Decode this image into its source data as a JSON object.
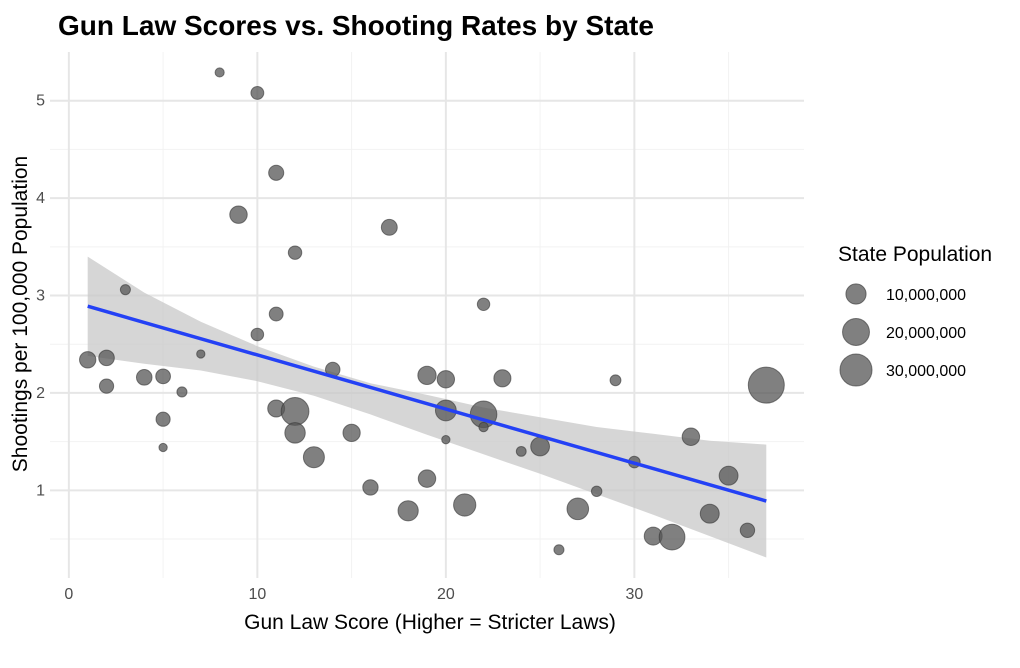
{
  "chart_data": {
    "type": "scatter",
    "title": "Gun Law Scores vs. Shooting Rates by State",
    "xlabel": "Gun Law Score (Higher = Stricter Laws)",
    "ylabel": "Shootings per 100,000 Population",
    "xlim": [
      -1,
      39
    ],
    "ylim": [
      0.1,
      5.5
    ],
    "xticks": [
      0,
      10,
      20,
      30
    ],
    "yticks": [
      1,
      2,
      3,
      4,
      5
    ],
    "grid": true,
    "legend": {
      "title": "State Population",
      "placement": "right",
      "entries": [
        {
          "label": "10,000,000",
          "value": 10000000
        },
        {
          "label": "20,000,000",
          "value": 20000000
        },
        {
          "label": "30,000,000",
          "value": 30000000
        }
      ]
    },
    "point_color": "#555555",
    "trend_color": "#2441f5",
    "ribbon_color": "#c8c8c8",
    "trend_line": {
      "x": [
        1,
        37
      ],
      "y": [
        2.89,
        0.89
      ]
    },
    "confidence_band": {
      "x": [
        1,
        4,
        7,
        10,
        13,
        16,
        19,
        22,
        25,
        28,
        31,
        34,
        37
      ],
      "upper": [
        3.4,
        3.03,
        2.73,
        2.48,
        2.27,
        2.1,
        1.98,
        1.85,
        1.75,
        1.65,
        1.58,
        1.51,
        1.47
      ],
      "lower": [
        2.38,
        2.3,
        2.23,
        2.12,
        1.97,
        1.78,
        1.57,
        1.37,
        1.17,
        0.96,
        0.75,
        0.53,
        0.31
      ]
    },
    "points": [
      {
        "x": 8,
        "y": 5.29,
        "size": 1000000
      },
      {
        "x": 10,
        "y": 5.08,
        "size": 3000000
      },
      {
        "x": 11,
        "y": 4.26,
        "size": 4700000
      },
      {
        "x": 9,
        "y": 3.83,
        "size": 6900000
      },
      {
        "x": 17,
        "y": 3.7,
        "size": 5400000
      },
      {
        "x": 12,
        "y": 3.44,
        "size": 3400000
      },
      {
        "x": 3,
        "y": 3.06,
        "size": 1400000
      },
      {
        "x": 22,
        "y": 2.91,
        "size": 2700000
      },
      {
        "x": 11,
        "y": 2.81,
        "size": 3700000
      },
      {
        "x": 10,
        "y": 2.6,
        "size": 2800000
      },
      {
        "x": 7,
        "y": 2.4,
        "size": 700000
      },
      {
        "x": 1,
        "y": 2.34,
        "size": 5800000
      },
      {
        "x": 2,
        "y": 2.36,
        "size": 5100000
      },
      {
        "x": 14,
        "y": 2.24,
        "size": 4200000
      },
      {
        "x": 4,
        "y": 2.16,
        "size": 5100000
      },
      {
        "x": 5,
        "y": 2.17,
        "size": 4400000
      },
      {
        "x": 19,
        "y": 2.18,
        "size": 7800000
      },
      {
        "x": 20,
        "y": 2.14,
        "size": 6800000
      },
      {
        "x": 23,
        "y": 2.15,
        "size": 6500000
      },
      {
        "x": 29,
        "y": 2.13,
        "size": 1800000
      },
      {
        "x": 2,
        "y": 2.07,
        "size": 4000000
      },
      {
        "x": 6,
        "y": 2.01,
        "size": 1400000
      },
      {
        "x": 37,
        "y": 2.08,
        "size": 39000000
      },
      {
        "x": 11,
        "y": 1.84,
        "size": 6400000
      },
      {
        "x": 12,
        "y": 1.81,
        "size": 21500000
      },
      {
        "x": 20,
        "y": 1.82,
        "size": 10700000
      },
      {
        "x": 22,
        "y": 1.78,
        "size": 19500000
      },
      {
        "x": 5,
        "y": 1.73,
        "size": 3900000
      },
      {
        "x": 22,
        "y": 1.65,
        "size": 1100000
      },
      {
        "x": 12,
        "y": 1.59,
        "size": 10300000
      },
      {
        "x": 15,
        "y": 1.59,
        "size": 6700000
      },
      {
        "x": 33,
        "y": 1.55,
        "size": 6900000
      },
      {
        "x": 20,
        "y": 1.52,
        "size": 700000
      },
      {
        "x": 25,
        "y": 1.45,
        "size": 8300000
      },
      {
        "x": 5,
        "y": 1.44,
        "size": 700000
      },
      {
        "x": 24,
        "y": 1.4,
        "size": 1300000
      },
      {
        "x": 13,
        "y": 1.34,
        "size": 11000000
      },
      {
        "x": 30,
        "y": 1.29,
        "size": 2200000
      },
      {
        "x": 35,
        "y": 1.15,
        "size": 8400000
      },
      {
        "x": 19,
        "y": 1.12,
        "size": 6900000
      },
      {
        "x": 16,
        "y": 1.03,
        "size": 4900000
      },
      {
        "x": 28,
        "y": 0.99,
        "size": 1600000
      },
      {
        "x": 21,
        "y": 0.85,
        "size": 12700000
      },
      {
        "x": 27,
        "y": 0.81,
        "size": 11800000
      },
      {
        "x": 18,
        "y": 0.79,
        "size": 10000000
      },
      {
        "x": 34,
        "y": 0.76,
        "size": 8500000
      },
      {
        "x": 36,
        "y": 0.59,
        "size": 4100000
      },
      {
        "x": 31,
        "y": 0.53,
        "size": 7400000
      },
      {
        "x": 32,
        "y": 0.52,
        "size": 18000000
      },
      {
        "x": 26,
        "y": 0.39,
        "size": 1400000
      }
    ]
  }
}
